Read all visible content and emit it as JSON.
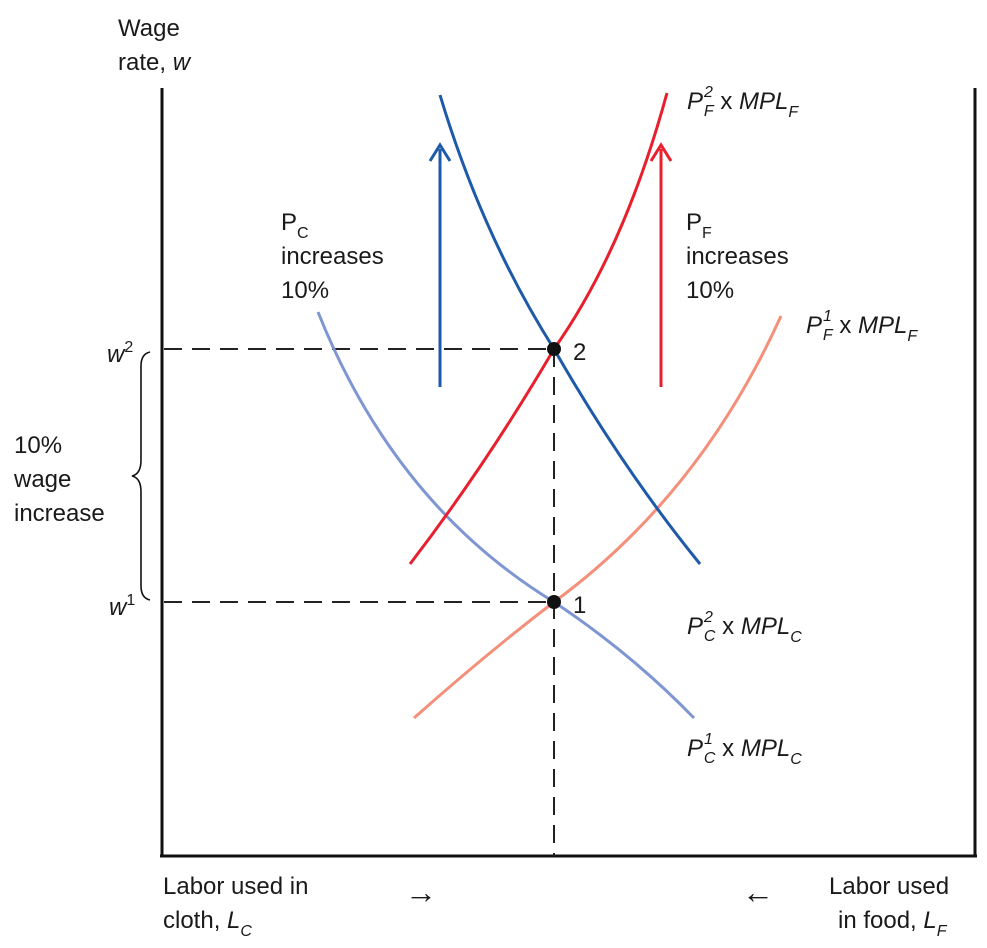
{
  "y_axis": {
    "line1": "Wage",
    "line2": "rate, ",
    "symbol": "w"
  },
  "x_axis_left": {
    "line1": "Labor used in",
    "line2": "cloth, ",
    "symbol": "L",
    "subscript": "C"
  },
  "x_axis_right": {
    "line1": "Labor used",
    "line2": "in food, ",
    "symbol": "L",
    "subscript": "F"
  },
  "arrow_right": "→",
  "arrow_left": "←",
  "wage_levels": [
    {
      "symbol": "w",
      "superscript": "2"
    },
    {
      "symbol": "w",
      "superscript": "1"
    }
  ],
  "bracket_label": [
    "10%",
    "wage",
    "increase"
  ],
  "points": [
    "2",
    "1"
  ],
  "pc_note": {
    "base": "P",
    "subscript": "C",
    "line2": "increases",
    "line3": "10%"
  },
  "pf_note": {
    "base": "P",
    "subscript": "F",
    "line2": "increases",
    "line3": "10%"
  },
  "curves": {
    "pf2": {
      "p": "P",
      "sup": "2",
      "sub": "F",
      "times": " x ",
      "mpl": "MPL",
      "mpl_sub": "F",
      "color": "#e8202e"
    },
    "pf1": {
      "p": "P",
      "sup": "1",
      "sub": "F",
      "times": " x ",
      "mpl": "MPL",
      "mpl_sub": "F",
      "color": "#f4907a"
    },
    "pc2": {
      "p": "P",
      "sup": "2",
      "sub": "C",
      "times": " x ",
      "mpl": "MPL",
      "mpl_sub": "C",
      "color": "#1e5aa8"
    },
    "pc1": {
      "p": "P",
      "sup": "1",
      "sub": "C",
      "times": " x ",
      "mpl": "MPL",
      "mpl_sub": "C",
      "color": "#7f96d2"
    }
  }
}
